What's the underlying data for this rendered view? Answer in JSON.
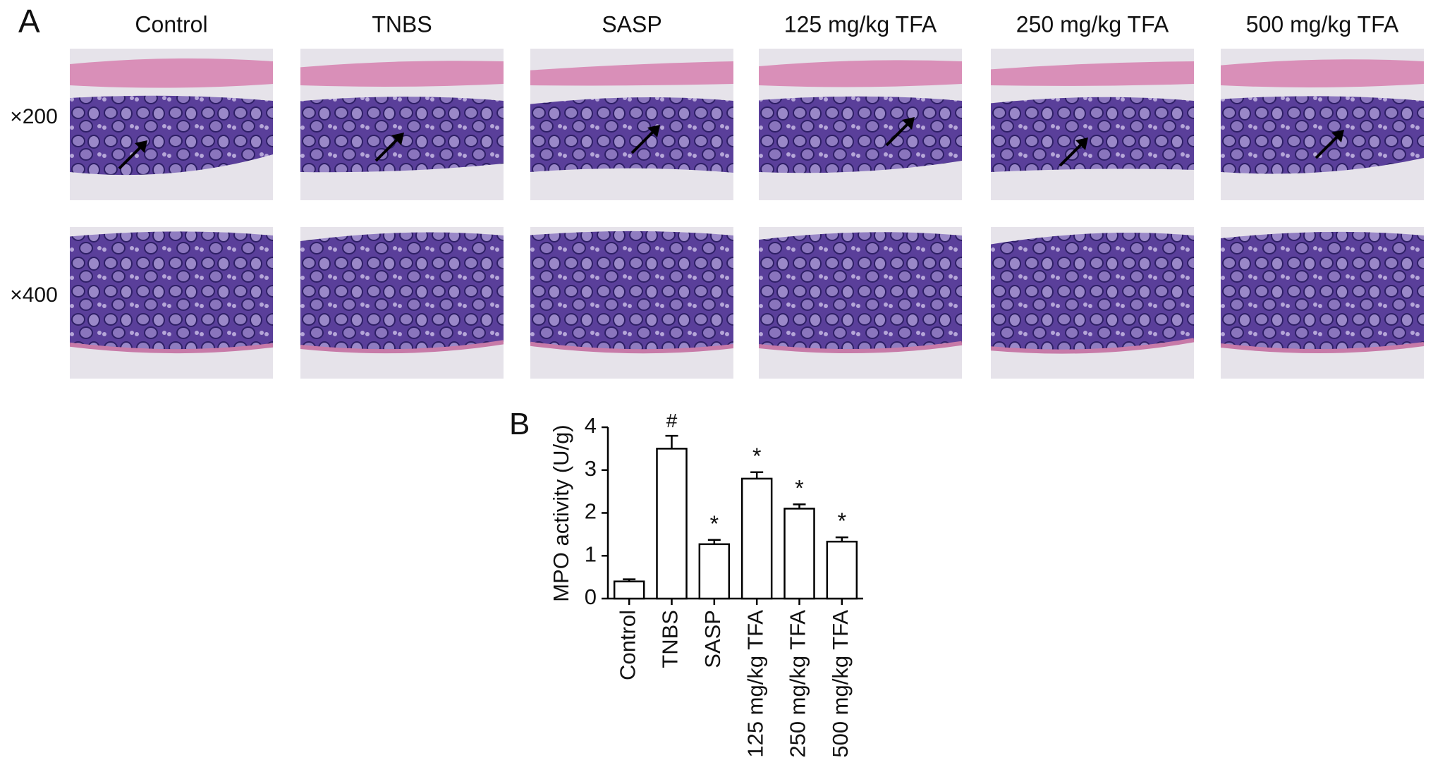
{
  "panel_a": {
    "label": "A",
    "columns": [
      "Control",
      "TNBS",
      "SASP",
      "125 mg/kg TFA",
      "250 mg/kg TFA",
      "500 mg/kg TFA"
    ],
    "rows": [
      "×200",
      "×400"
    ]
  },
  "chart_data": {
    "type": "bar",
    "panel_label": "B",
    "y_label": "MPO activity (U/g)",
    "categories": [
      "Control",
      "TNBS",
      "SASP",
      "125 mg/kg TFA",
      "250 mg/kg TFA",
      "500 mg/kg TFA"
    ],
    "values": [
      0.4,
      3.5,
      1.27,
      2.8,
      2.1,
      1.33
    ],
    "errors": [
      0.05,
      0.3,
      0.1,
      0.15,
      0.1,
      0.1
    ],
    "annotations": [
      null,
      "#",
      "*",
      "*",
      "*",
      "*"
    ],
    "color": "#ffffff",
    "ylim": [
      0,
      4
    ],
    "yticks": [
      0,
      1,
      2,
      3,
      4
    ],
    "grid": false
  }
}
